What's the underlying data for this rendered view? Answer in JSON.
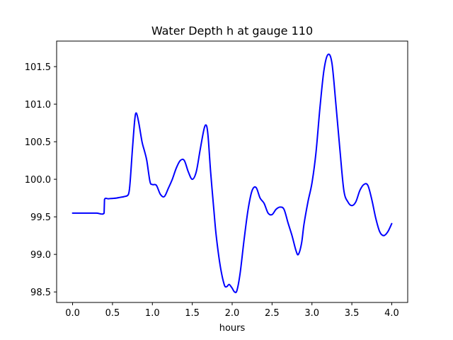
{
  "chart_data": {
    "type": "line",
    "title": "Water Depth h at gauge 110",
    "xlabel": "hours",
    "ylabel": "",
    "xlim": [
      -0.2,
      4.2
    ],
    "ylim": [
      98.36,
      101.84
    ],
    "xticks": [
      0.0,
      0.5,
      1.0,
      1.5,
      2.0,
      2.5,
      3.0,
      3.5,
      4.0
    ],
    "xtick_labels": [
      "0.0",
      "0.5",
      "1.0",
      "1.5",
      "2.0",
      "2.5",
      "3.0",
      "3.5",
      "4.0"
    ],
    "yticks": [
      98.5,
      99.0,
      99.5,
      100.0,
      100.5,
      101.0,
      101.5
    ],
    "ytick_labels": [
      "98.5",
      "99.0",
      "99.5",
      "100.0",
      "100.5",
      "101.0",
      "101.5"
    ],
    "grid": false,
    "series": [
      {
        "color": "#0000ff",
        "x": [
          0.0,
          0.1,
          0.2,
          0.3,
          0.395,
          0.4,
          0.45,
          0.5,
          0.55,
          0.6,
          0.65,
          0.7,
          0.72,
          0.75,
          0.78,
          0.8,
          0.83,
          0.87,
          0.9,
          0.93,
          0.97,
          1.0,
          1.05,
          1.1,
          1.15,
          1.2,
          1.25,
          1.3,
          1.35,
          1.4,
          1.45,
          1.5,
          1.55,
          1.6,
          1.65,
          1.68,
          1.7,
          1.73,
          1.77,
          1.8,
          1.85,
          1.9,
          1.93,
          1.96,
          1.98,
          2.0,
          2.03,
          2.06,
          2.1,
          2.15,
          2.2,
          2.25,
          2.3,
          2.35,
          2.4,
          2.45,
          2.5,
          2.55,
          2.6,
          2.65,
          2.7,
          2.75,
          2.8,
          2.83,
          2.87,
          2.9,
          2.95,
          3.0,
          3.05,
          3.1,
          3.15,
          3.2,
          3.25,
          3.3,
          3.35,
          3.4,
          3.45,
          3.5,
          3.55,
          3.6,
          3.65,
          3.7,
          3.75,
          3.8,
          3.85,
          3.9,
          3.95,
          4.0
        ],
        "values": [
          99.55,
          99.55,
          99.55,
          99.55,
          99.55,
          99.73,
          99.74,
          99.745,
          99.75,
          99.76,
          99.77,
          99.8,
          99.95,
          100.4,
          100.8,
          100.88,
          100.75,
          100.5,
          100.38,
          100.25,
          99.97,
          99.93,
          99.92,
          99.8,
          99.77,
          99.88,
          100.0,
          100.15,
          100.25,
          100.25,
          100.1,
          100.0,
          100.1,
          100.4,
          100.68,
          100.71,
          100.55,
          100.1,
          99.6,
          99.25,
          98.85,
          98.6,
          98.57,
          98.6,
          98.58,
          98.55,
          98.5,
          98.52,
          98.75,
          99.2,
          99.6,
          99.85,
          99.89,
          99.75,
          99.68,
          99.55,
          99.53,
          99.6,
          99.63,
          99.6,
          99.42,
          99.25,
          99.05,
          99.0,
          99.15,
          99.4,
          99.7,
          99.95,
          100.35,
          100.95,
          101.45,
          101.66,
          101.55,
          101.0,
          100.4,
          99.85,
          99.7,
          99.65,
          99.7,
          99.85,
          99.93,
          99.92,
          99.73,
          99.48,
          99.3,
          99.25,
          99.3,
          99.41
        ]
      }
    ]
  }
}
